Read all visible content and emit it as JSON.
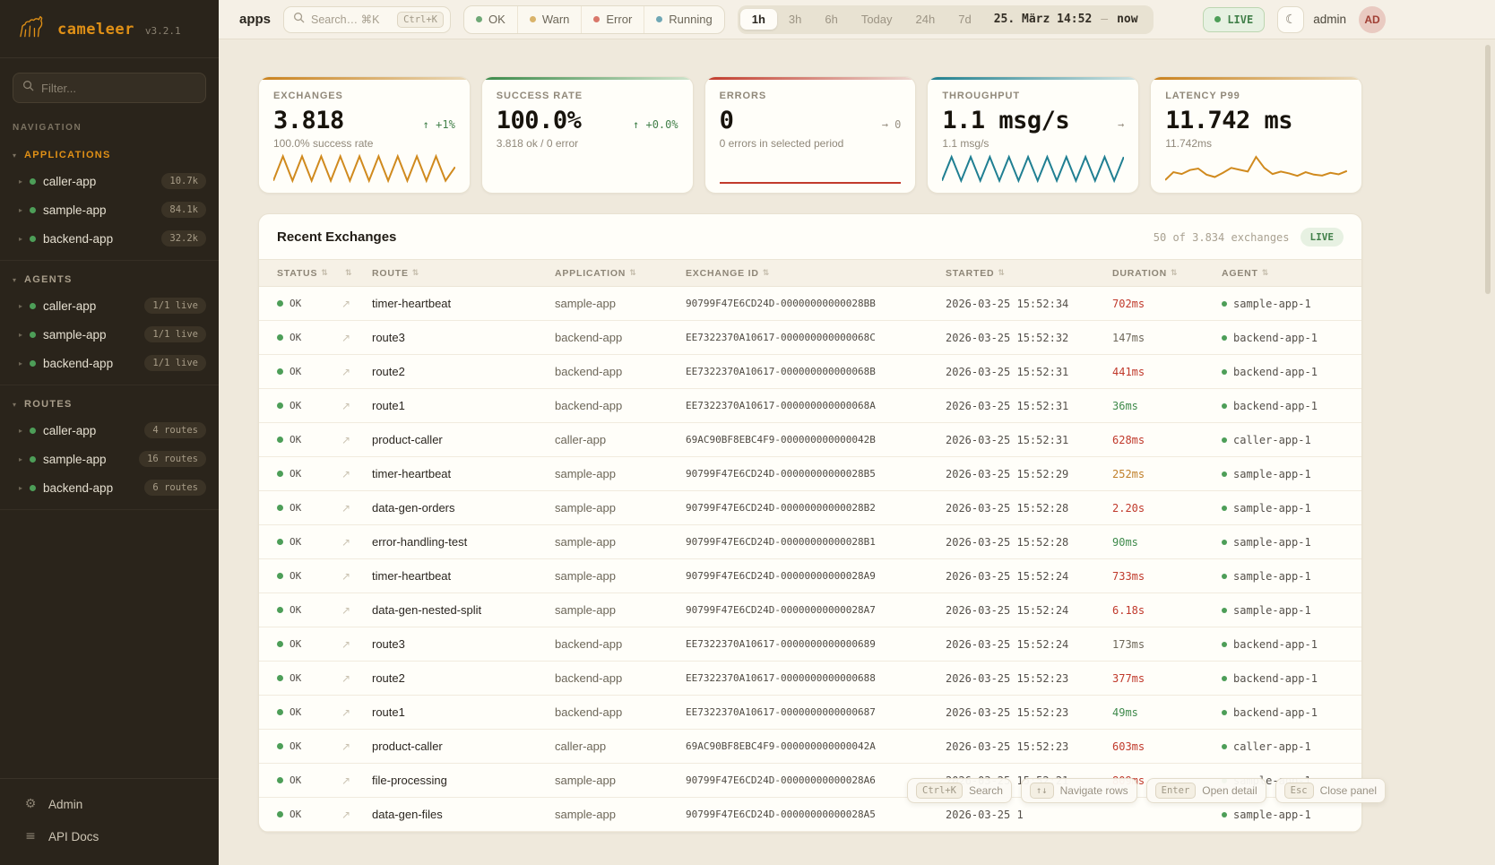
{
  "sidebar": {
    "logo": {
      "name": "cameleer",
      "version": "v3.2.1"
    },
    "filter_placeholder": "Filter...",
    "nav_label": "NAVIGATION",
    "sections": [
      {
        "label": "APPLICATIONS",
        "color": "#e09016",
        "items": [
          {
            "name": "caller-app",
            "badge": "10.7k"
          },
          {
            "name": "sample-app",
            "badge": "84.1k"
          },
          {
            "name": "backend-app",
            "badge": "32.2k"
          }
        ]
      },
      {
        "label": "AGENTS",
        "color": "#a99e8b",
        "items": [
          {
            "name": "caller-app",
            "badge": "1/1 live"
          },
          {
            "name": "sample-app",
            "badge": "1/1 live"
          },
          {
            "name": "backend-app",
            "badge": "1/1 live"
          }
        ]
      },
      {
        "label": "ROUTES",
        "color": "#a99e8b",
        "items": [
          {
            "name": "caller-app",
            "badge": "4 routes"
          },
          {
            "name": "sample-app",
            "badge": "16 routes"
          },
          {
            "name": "backend-app",
            "badge": "6 routes"
          }
        ]
      }
    ],
    "footer": [
      {
        "label": "Admin",
        "icon": "gear-icon",
        "glyph": "⚙"
      },
      {
        "label": "API Docs",
        "icon": "docs-icon",
        "glyph": "≡"
      }
    ]
  },
  "topbar": {
    "context_label": "apps",
    "search": {
      "placeholder": "Search… ⌘K",
      "shortcut": "Ctrl+K"
    },
    "status_filters": [
      {
        "label": "OK",
        "color": "#6fa876"
      },
      {
        "label": "Warn",
        "color": "#d9b36a"
      },
      {
        "label": "Error",
        "color": "#d9776a"
      },
      {
        "label": "Running",
        "color": "#6fa7b5"
      }
    ],
    "time_ranges": [
      {
        "label": "1h",
        "active": true
      },
      {
        "label": "3h",
        "active": false
      },
      {
        "label": "6h",
        "active": false
      },
      {
        "label": "Today",
        "active": false
      },
      {
        "label": "24h",
        "active": false
      },
      {
        "label": "7d",
        "active": false
      }
    ],
    "time_display": {
      "from": "25. März 14:52",
      "sep": "—",
      "to": "now"
    },
    "live_label": "LIVE",
    "user": {
      "name": "admin",
      "initials": "AD"
    }
  },
  "cards": [
    {
      "label": "EXCHANGES",
      "value": "3.818",
      "trend": {
        "arrow": "↑",
        "text": "+1%",
        "color": "#42804a"
      },
      "sub": "100.0% success rate",
      "accent": [
        "#c9811c",
        "#ead9b8"
      ],
      "spark": {
        "color": "#d08a1e",
        "values": [
          10,
          90,
          10,
          90,
          10,
          90,
          10,
          90,
          10,
          90,
          10,
          90,
          10,
          90,
          10,
          90,
          10,
          90,
          10,
          55
        ]
      }
    },
    {
      "label": "SUCCESS RATE",
      "value": "100.0%",
      "trend": {
        "arrow": "↑",
        "text": "+0.0%",
        "color": "#42804a"
      },
      "sub": "3.818 ok / 0 error",
      "accent": [
        "#3c8a4a",
        "#cfe3cb"
      ],
      "spark": null
    },
    {
      "label": "ERRORS",
      "value": "0",
      "trend": {
        "arrow": "→",
        "text": "0",
        "color": "#9a9284"
      },
      "sub": "0 errors in selected period",
      "accent": [
        "#c23b2c",
        "#ecd7d0"
      ],
      "spark": {
        "color": "#c23b2c",
        "values": [
          3,
          3
        ]
      }
    },
    {
      "label": "THROUGHPUT",
      "value": "1.1 msg/s",
      "trend": {
        "arrow": "→",
        "text": "",
        "color": "#9a9284"
      },
      "sub": "1.1 msg/s",
      "accent": [
        "#1f7f8e",
        "#cfe3e2"
      ],
      "spark": {
        "color": "#207f92",
        "values": [
          10,
          88,
          10,
          88,
          10,
          88,
          10,
          88,
          10,
          88,
          10,
          88,
          10,
          88,
          10,
          88,
          10,
          88,
          10,
          88
        ]
      }
    },
    {
      "label": "LATENCY P99",
      "value": "11.742 ms",
      "trend": null,
      "sub": "11.742ms",
      "accent": [
        "#c9811c",
        "#ead9b8"
      ],
      "spark": {
        "color": "#d08a1e",
        "values": [
          12,
          38,
          32,
          45,
          50,
          30,
          22,
          36,
          52,
          46,
          40,
          88,
          52,
          32,
          40,
          34,
          26,
          38,
          30,
          27,
          36,
          31,
          42
        ]
      }
    }
  ],
  "table": {
    "title": "Recent Exchanges",
    "meta_count": "50 of 3.834 exchanges",
    "live_label": "LIVE",
    "duration_colors": {
      "bad": "#c0392b",
      "warn": "#c07f2a",
      "good": "#3f8a4c",
      "neutral": "#6d6759"
    },
    "columns": [
      {
        "label": "STATUS"
      },
      {
        "label": ""
      },
      {
        "label": "ROUTE"
      },
      {
        "label": "APPLICATION"
      },
      {
        "label": "EXCHANGE ID"
      },
      {
        "label": "STARTED"
      },
      {
        "label": "DURATION"
      },
      {
        "label": "AGENT"
      }
    ],
    "rows": [
      {
        "status": "OK",
        "route": "timer-heartbeat",
        "application": "sample-app",
        "exchange_id": "90799F47E6CD24D-00000000000028BB",
        "started": "2026-03-25 15:52:34",
        "duration": "702ms",
        "duration_tone": "bad",
        "agent": "sample-app-1"
      },
      {
        "status": "OK",
        "route": "route3",
        "application": "backend-app",
        "exchange_id": "EE7322370A10617-000000000000068C",
        "started": "2026-03-25 15:52:32",
        "duration": "147ms",
        "duration_tone": "neutral",
        "agent": "backend-app-1"
      },
      {
        "status": "OK",
        "route": "route2",
        "application": "backend-app",
        "exchange_id": "EE7322370A10617-000000000000068B",
        "started": "2026-03-25 15:52:31",
        "duration": "441ms",
        "duration_tone": "bad",
        "agent": "backend-app-1"
      },
      {
        "status": "OK",
        "route": "route1",
        "application": "backend-app",
        "exchange_id": "EE7322370A10617-000000000000068A",
        "started": "2026-03-25 15:52:31",
        "duration": "36ms",
        "duration_tone": "good",
        "agent": "backend-app-1"
      },
      {
        "status": "OK",
        "route": "product-caller",
        "application": "caller-app",
        "exchange_id": "69AC90BF8EBC4F9-000000000000042B",
        "started": "2026-03-25 15:52:31",
        "duration": "628ms",
        "duration_tone": "bad",
        "agent": "caller-app-1"
      },
      {
        "status": "OK",
        "route": "timer-heartbeat",
        "application": "sample-app",
        "exchange_id": "90799F47E6CD24D-00000000000028B5",
        "started": "2026-03-25 15:52:29",
        "duration": "252ms",
        "duration_tone": "warn",
        "agent": "sample-app-1"
      },
      {
        "status": "OK",
        "route": "data-gen-orders",
        "application": "sample-app",
        "exchange_id": "90799F47E6CD24D-00000000000028B2",
        "started": "2026-03-25 15:52:28",
        "duration": "2.20s",
        "duration_tone": "bad",
        "agent": "sample-app-1"
      },
      {
        "status": "OK",
        "route": "error-handling-test",
        "application": "sample-app",
        "exchange_id": "90799F47E6CD24D-00000000000028B1",
        "started": "2026-03-25 15:52:28",
        "duration": "90ms",
        "duration_tone": "good",
        "agent": "sample-app-1"
      },
      {
        "status": "OK",
        "route": "timer-heartbeat",
        "application": "sample-app",
        "exchange_id": "90799F47E6CD24D-00000000000028A9",
        "started": "2026-03-25 15:52:24",
        "duration": "733ms",
        "duration_tone": "bad",
        "agent": "sample-app-1"
      },
      {
        "status": "OK",
        "route": "data-gen-nested-split",
        "application": "sample-app",
        "exchange_id": "90799F47E6CD24D-00000000000028A7",
        "started": "2026-03-25 15:52:24",
        "duration": "6.18s",
        "duration_tone": "bad",
        "agent": "sample-app-1"
      },
      {
        "status": "OK",
        "route": "route3",
        "application": "backend-app",
        "exchange_id": "EE7322370A10617-0000000000000689",
        "started": "2026-03-25 15:52:24",
        "duration": "173ms",
        "duration_tone": "neutral",
        "agent": "backend-app-1"
      },
      {
        "status": "OK",
        "route": "route2",
        "application": "backend-app",
        "exchange_id": "EE7322370A10617-0000000000000688",
        "started": "2026-03-25 15:52:23",
        "duration": "377ms",
        "duration_tone": "bad",
        "agent": "backend-app-1"
      },
      {
        "status": "OK",
        "route": "route1",
        "application": "backend-app",
        "exchange_id": "EE7322370A10617-0000000000000687",
        "started": "2026-03-25 15:52:23",
        "duration": "49ms",
        "duration_tone": "good",
        "agent": "backend-app-1"
      },
      {
        "status": "OK",
        "route": "product-caller",
        "application": "caller-app",
        "exchange_id": "69AC90BF8EBC4F9-000000000000042A",
        "started": "2026-03-25 15:52:23",
        "duration": "603ms",
        "duration_tone": "bad",
        "agent": "caller-app-1"
      },
      {
        "status": "OK",
        "route": "file-processing",
        "application": "sample-app",
        "exchange_id": "90799F47E6CD24D-00000000000028A6",
        "started": "2026-03-25 15:52:21",
        "duration": "809ms",
        "duration_tone": "bad",
        "agent": "sample-app-1"
      },
      {
        "status": "OK",
        "route": "data-gen-files",
        "application": "sample-app",
        "exchange_id": "90799F47E6CD24D-00000000000028A5",
        "started": "2026-03-25 1",
        "duration": "",
        "duration_tone": "neutral",
        "agent": "sample-app-1"
      }
    ]
  },
  "shortcuts": [
    {
      "key": "Ctrl+K",
      "label": "Search"
    },
    {
      "key": "↑↓",
      "label": "Navigate rows"
    },
    {
      "key": "Enter",
      "label": "Open detail"
    },
    {
      "key": "Esc",
      "label": "Close panel"
    }
  ]
}
